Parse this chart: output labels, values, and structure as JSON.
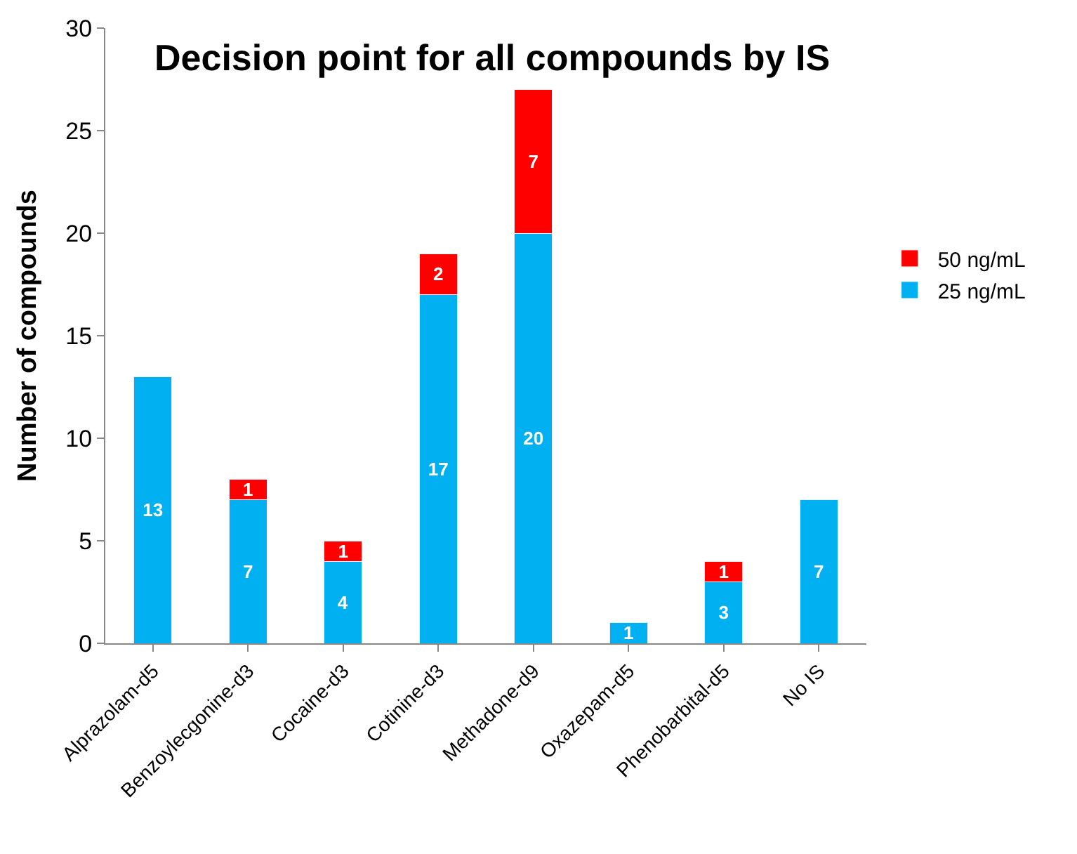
{
  "chart_data": {
    "type": "bar",
    "title": "Decision point for all compounds by IS",
    "ylabel": "Number of compounds",
    "categories": [
      "Alprazolam-d5",
      "Benzoylecgonine-d3",
      "Cocaine-d3",
      "Cotinine-d3",
      "Methadone-d9",
      "Oxazepam-d5",
      "Phenobarbital-d5",
      "No IS"
    ],
    "series": [
      {
        "name": "25 ng/mL",
        "color": "#00b0f0",
        "values": [
          13,
          7,
          4,
          17,
          20,
          1,
          3,
          7
        ]
      },
      {
        "name": "50 ng/mL",
        "color": "#ff0000",
        "values": [
          null,
          1,
          1,
          2,
          7,
          null,
          1,
          null
        ]
      }
    ],
    "stacked": true,
    "data_labels": true,
    "ylim": [
      0,
      30
    ],
    "yticks": [
      0,
      5,
      10,
      15,
      20,
      25,
      30
    ],
    "legend": "right"
  }
}
